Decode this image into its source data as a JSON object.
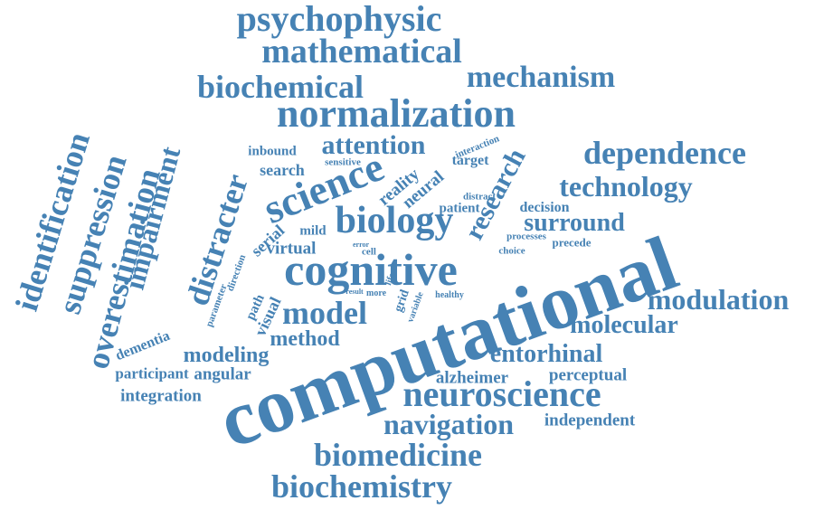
{
  "color": "#4682b4",
  "words": [
    "computational",
    "cognitive",
    "neuroscience",
    "psychophysic",
    "mathematical",
    "biochemical",
    "mechanism",
    "normalization",
    "attention",
    "dependence",
    "technology",
    "research",
    "science",
    "biology",
    "surround",
    "modulation",
    "molecular",
    "entorhinal",
    "model",
    "method",
    "modeling",
    "navigation",
    "biomedicine",
    "biochemistry",
    "identification",
    "suppression",
    "overestimation",
    "impairment",
    "distracter",
    "independent",
    "perceptual",
    "alzheimer",
    "integration",
    "angular",
    "participant",
    "dementia",
    "visual",
    "path",
    "parameter",
    "direction",
    "serial",
    "virtual",
    "mild",
    "neural",
    "reality",
    "patient",
    "target",
    "interaction",
    "distract",
    "decision",
    "processes",
    "precede",
    "choice",
    "search",
    "inbound",
    "sensitive",
    "cell",
    "error",
    "life",
    "grid",
    "variable",
    "result",
    "more",
    "healthy"
  ]
}
